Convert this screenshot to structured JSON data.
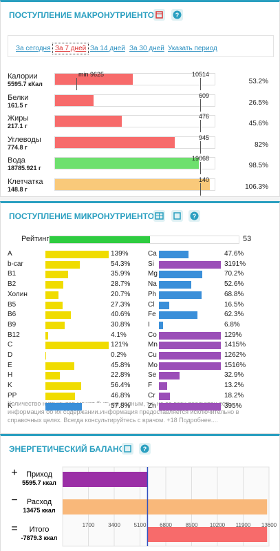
{
  "macro": {
    "title": "ПОСТУПЛЕНИЕ МАКРОНУТРИЕНТОВ",
    "tabs": [
      "За сегодня",
      "За 7 дней",
      "За 14 дней",
      "За 30 дней",
      "Указать период"
    ],
    "active_tab": 1,
    "rows": [
      {
        "name": "Калории",
        "amount": "5595.7 кКал",
        "min": "min 9625",
        "target": 10514,
        "percent": 53.2,
        "percent_label": "53.2%",
        "color": "#f76b6b"
      },
      {
        "name": "Белки",
        "amount": "161.5 г",
        "target": 609,
        "percent": 26.5,
        "percent_label": "26.5%",
        "color": "#f76b6b"
      },
      {
        "name": "Жиры",
        "amount": "217.1 г",
        "target": 476,
        "percent": 45.6,
        "percent_label": "45.6%",
        "color": "#f76b6b"
      },
      {
        "name": "Углеводы",
        "amount": "774.8 г",
        "target": 945,
        "percent": 82,
        "percent_label": "82%",
        "color": "#f76b6b"
      },
      {
        "name": "Вода",
        "amount": "18785.921 г",
        "target": 19068,
        "percent": 98.5,
        "percent_label": "98.5%",
        "color": "#6ee06e"
      },
      {
        "name": "Клетчатка",
        "amount": "148.8 г",
        "target": 140,
        "percent": 106.3,
        "percent_label": "106.3%",
        "color": "#f9c97a"
      }
    ]
  },
  "micro": {
    "title": "ПОСТУПЛЕНИЕ МИКРОНУТРИЕНТОВ",
    "rating_label": "Рейтинг",
    "rating": 53,
    "left": [
      {
        "name": "A",
        "percent": 139,
        "label": "139%",
        "color": "#f0dc00"
      },
      {
        "name": "b-car",
        "percent": 54.3,
        "label": "54.3%",
        "color": "#f0dc00"
      },
      {
        "name": "B1",
        "percent": 35.9,
        "label": "35.9%",
        "color": "#f0dc00"
      },
      {
        "name": "B2",
        "percent": 28.7,
        "label": "28.7%",
        "color": "#f0dc00"
      },
      {
        "name": "Холин",
        "percent": 20.7,
        "label": "20.7%",
        "color": "#f0dc00"
      },
      {
        "name": "B5",
        "percent": 27.3,
        "label": "27.3%",
        "color": "#f0dc00"
      },
      {
        "name": "B6",
        "percent": 40.6,
        "label": "40.6%",
        "color": "#f0dc00"
      },
      {
        "name": "B9",
        "percent": 30.8,
        "label": "30.8%",
        "color": "#f0dc00"
      },
      {
        "name": "B12",
        "percent": 4.1,
        "label": "4.1%",
        "color": "#f0dc00"
      },
      {
        "name": "C",
        "percent": 121,
        "label": "121%",
        "color": "#f0dc00"
      },
      {
        "name": "D",
        "percent": 0.2,
        "label": "0.2%",
        "color": "#f0dc00"
      },
      {
        "name": "E",
        "percent": 45.8,
        "label": "45.8%",
        "color": "#f0dc00"
      },
      {
        "name": "H",
        "percent": 22.8,
        "label": "22.8%",
        "color": "#f0dc00"
      },
      {
        "name": "K",
        "percent": 56.4,
        "label": "56.4%",
        "color": "#f0dc00"
      },
      {
        "name": "PP",
        "percent": 46.8,
        "label": "46.8%",
        "color": "#f0dc00"
      },
      {
        "name": "K",
        "percent": 57.8,
        "label": "57.8%",
        "color": "#3a8fd9"
      }
    ],
    "right": [
      {
        "name": "Ca",
        "percent": 47.6,
        "label": "47.6%",
        "color": "#3a8fd9"
      },
      {
        "name": "Si",
        "percent": 3191,
        "label": "3191%",
        "color": "#9b4fb8"
      },
      {
        "name": "Mg",
        "percent": 70.2,
        "label": "70.2%",
        "color": "#3a8fd9"
      },
      {
        "name": "Na",
        "percent": 52.6,
        "label": "52.6%",
        "color": "#3a8fd9"
      },
      {
        "name": "Ph",
        "percent": 68.8,
        "label": "68.8%",
        "color": "#3a8fd9"
      },
      {
        "name": "Cl",
        "percent": 16.5,
        "label": "16.5%",
        "color": "#3a8fd9"
      },
      {
        "name": "Fe",
        "percent": 62.3,
        "label": "62.3%",
        "color": "#3a8fd9"
      },
      {
        "name": "I",
        "percent": 6.8,
        "label": "6.8%",
        "color": "#3a8fd9"
      },
      {
        "name": "Co",
        "percent": 129,
        "label": "129%",
        "color": "#9b4fb8"
      },
      {
        "name": "Mn",
        "percent": 1415,
        "label": "1415%",
        "color": "#9b4fb8"
      },
      {
        "name": "Cu",
        "percent": 1262,
        "label": "1262%",
        "color": "#9b4fb8"
      },
      {
        "name": "Mo",
        "percent": 1516,
        "label": "1516%",
        "color": "#9b4fb8"
      },
      {
        "name": "Se",
        "percent": 32.9,
        "label": "32.9%",
        "color": "#9b4fb8"
      },
      {
        "name": "F",
        "percent": 13.2,
        "label": "13.2%",
        "color": "#9b4fb8"
      },
      {
        "name": "Cr",
        "percent": 18.2,
        "label": "18.2%",
        "color": "#9b4fb8"
      },
      {
        "name": "Zn",
        "percent": 395,
        "label": "395%",
        "color": "#9b4fb8"
      }
    ],
    "note": "Количество нутриентов может быть не полным, т.к. не во всех продуктах есть информация об их содержании.Информация предоставляется исключительно в справочных целях. Всегда консультируйтесь с врачом. +18 Подробнее...."
  },
  "energy": {
    "title": "ЭНЕРГЕТИЧЕСКИЙ БАЛАНС",
    "xlim": [
      0,
      13600
    ],
    "xticks": [
      1700,
      3400,
      5100,
      6800,
      8500,
      10200,
      11900,
      13600
    ],
    "rows": [
      {
        "name": "Приход",
        "amount": "5595.7 ккал",
        "value": 5595.7,
        "color": "#9b2fa6"
      },
      {
        "name": "Расход",
        "amount": "13475 ккал",
        "value": 13475,
        "color": "#f9b87a"
      },
      {
        "name": "Итого",
        "amount": "-7879.3 ккал",
        "value": -7879.3,
        "color": "#f76b6b"
      }
    ]
  }
}
